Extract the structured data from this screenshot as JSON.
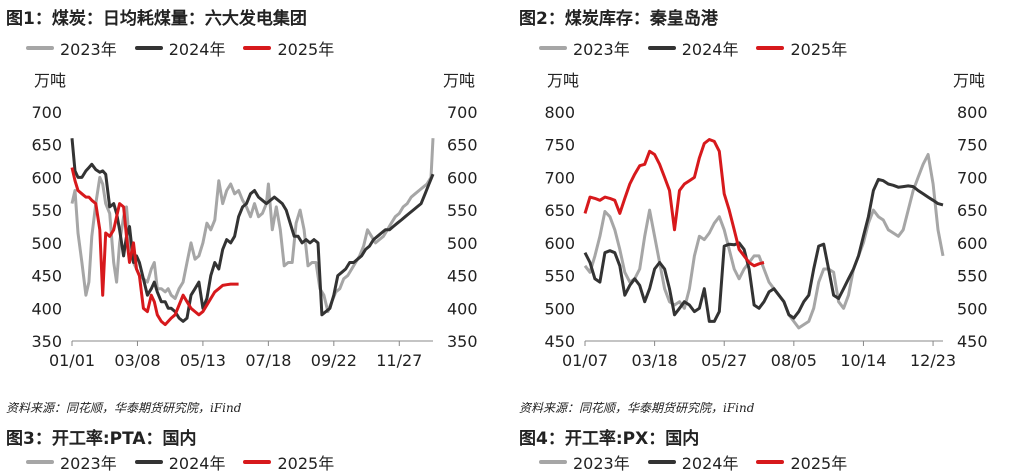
{
  "colors": {
    "y2023": "#a6a6a6",
    "y2024": "#333333",
    "y2025": "#d7191c"
  },
  "panels": [
    {
      "title": "图1：煤炭：日均耗煤量：六大发电集团",
      "source": "资料来源：同花顺，华泰期货研究院，iFind",
      "next_title": "图3：开工率:PTA：国内",
      "chart_data": {
        "type": "line",
        "title": "图1：煤炭：日均耗煤量：六大发电集团",
        "ylabel_left": "万吨",
        "ylabel_right": "万吨",
        "ylim": [
          350,
          700
        ],
        "yticks": [
          350,
          400,
          450,
          500,
          550,
          600,
          650,
          700
        ],
        "xlim": [
          0,
          364
        ],
        "xticks": [
          {
            "pos": 0,
            "label": "01/01"
          },
          {
            "pos": 66,
            "label": "03/08"
          },
          {
            "pos": 132,
            "label": "05/13"
          },
          {
            "pos": 198,
            "label": "07/18"
          },
          {
            "pos": 264,
            "label": "09/22"
          },
          {
            "pos": 330,
            "label": "11/27"
          }
        ],
        "legend": "top-left",
        "grid": false,
        "series": [
          {
            "name": "2023年",
            "color": "#a6a6a6",
            "x": [
              0,
              3,
              6,
              10,
              14,
              17,
              20,
              24,
              28,
              31,
              34,
              38,
              42,
              45,
              48,
              52,
              55,
              58,
              62,
              65,
              68,
              72,
              76,
              80,
              83,
              86,
              90,
              94,
              97,
              100,
              104,
              108,
              112,
              116,
              120,
              124,
              128,
              132,
              136,
              140,
              144,
              148,
              152,
              156,
              160,
              164,
              168,
              172,
              176,
              180,
              184,
              188,
              192,
              196,
              198,
              202,
              206,
              210,
              214,
              218,
              222,
              226,
              230,
              234,
              238,
              242,
              246,
              250,
              254,
              258,
              262,
              266,
              270,
              274,
              278,
              282,
              286,
              290,
              294,
              298,
              302,
              306,
              310,
              314,
              318,
              322,
              326,
              330,
              334,
              338,
              342,
              346,
              350,
              354,
              358,
              362,
              364
            ],
            "values": [
              560,
              580,
              515,
              470,
              420,
              440,
              510,
              560,
              600,
              590,
              560,
              545,
              470,
              440,
              500,
              540,
              555,
              500,
              470,
              460,
              450,
              445,
              440,
              460,
              470,
              430,
              430,
              425,
              430,
              420,
              415,
              430,
              440,
              470,
              500,
              475,
              480,
              500,
              530,
              520,
              535,
              595,
              560,
              580,
              590,
              575,
              580,
              565,
              555,
              540,
              560,
              540,
              545,
              560,
              590,
              520,
              555,
              520,
              465,
              470,
              470,
              530,
              550,
              520,
              465,
              470,
              470,
              430,
              420,
              395,
              410,
              425,
              430,
              445,
              450,
              460,
              470,
              480,
              495,
              520,
              510,
              500,
              505,
              510,
              520,
              530,
              540,
              545,
              555,
              560,
              570,
              575,
              580,
              585,
              590,
              600,
              660
            ]
          },
          {
            "name": "2024年",
            "color": "#333333",
            "x": [
              0,
              3,
              6,
              10,
              14,
              17,
              20,
              24,
              28,
              31,
              34,
              38,
              42,
              45,
              48,
              52,
              55,
              58,
              62,
              65,
              68,
              72,
              76,
              80,
              83,
              86,
              90,
              94,
              97,
              100,
              104,
              108,
              112,
              116,
              120,
              124,
              128,
              132,
              136,
              140,
              144,
              148,
              152,
              156,
              160,
              164,
              168,
              172,
              176,
              180,
              184,
              188,
              192,
              196,
              200,
              204,
              208,
              212,
              216,
              220,
              224,
              228,
              232,
              236,
              240,
              244,
              248,
              252,
              256,
              260,
              264,
              268,
              272,
              276,
              280,
              284,
              288,
              292,
              296,
              300,
              304,
              308,
              312,
              316,
              320,
              324,
              328,
              332,
              336,
              340,
              344,
              348,
              352,
              356,
              360,
              364
            ],
            "values": [
              660,
              610,
              600,
              600,
              610,
              615,
              620,
              612,
              608,
              610,
              605,
              555,
              560,
              545,
              520,
              480,
              510,
              525,
              470,
              480,
              470,
              445,
              420,
              430,
              440,
              425,
              410,
              410,
              400,
              400,
              395,
              385,
              380,
              385,
              420,
              430,
              440,
              400,
              415,
              450,
              470,
              460,
              490,
              505,
              500,
              510,
              540,
              555,
              560,
              575,
              580,
              570,
              565,
              560,
              565,
              570,
              565,
              560,
              550,
              530,
              510,
              510,
              500,
              505,
              500,
              505,
              500,
              390,
              395,
              400,
              420,
              450,
              455,
              460,
              470,
              470,
              475,
              480,
              490,
              495,
              505,
              510,
              515,
              520,
              520,
              525,
              530,
              535,
              540,
              545,
              550,
              555,
              560,
              575,
              590,
              605
            ]
          },
          {
            "name": "2025年",
            "color": "#d7191c",
            "x": [
              0,
              3,
              6,
              10,
              14,
              17,
              20,
              24,
              28,
              31,
              34,
              38,
              42,
              45,
              48,
              52,
              55,
              58,
              62,
              65,
              68,
              72,
              76,
              80,
              83,
              86,
              90,
              94,
              97,
              100,
              104,
              108,
              112,
              116,
              120,
              124,
              128,
              132,
              136,
              140,
              144,
              148,
              152,
              156,
              160,
              164,
              168
            ],
            "values": [
              615,
              595,
              580,
              575,
              570,
              570,
              565,
              560,
              520,
              420,
              515,
              510,
              520,
              540,
              560,
              555,
              510,
              470,
              500,
              460,
              450,
              400,
              395,
              420,
              410,
              390,
              380,
              375,
              380,
              385,
              390,
              405,
              420,
              410,
              400,
              395,
              390,
              395,
              405,
              415,
              425,
              430,
              435,
              436,
              437,
              437,
              437
            ]
          }
        ]
      }
    },
    {
      "title": "图2：煤炭库存：秦皇岛港",
      "source": "资料来源：同花顺，华泰期货研究院，iFind",
      "next_title": "图4：开工率:PX：国内",
      "chart_data": {
        "type": "line",
        "title": "图2：煤炭库存：秦皇岛港",
        "ylabel_left": "万吨",
        "ylabel_right": "万吨",
        "ylim": [
          450,
          800
        ],
        "yticks": [
          450,
          500,
          550,
          600,
          650,
          700,
          750,
          800
        ],
        "xlim": [
          0,
          360
        ],
        "xticks": [
          {
            "pos": 0,
            "label": "01/07"
          },
          {
            "pos": 70,
            "label": "03/18"
          },
          {
            "pos": 140,
            "label": "05/27"
          },
          {
            "pos": 210,
            "label": "08/05"
          },
          {
            "pos": 280,
            "label": "10/14"
          },
          {
            "pos": 350,
            "label": "12/23"
          }
        ],
        "legend": "top-left",
        "grid": false,
        "series": [
          {
            "name": "2023年",
            "color": "#a6a6a6",
            "x": [
              0,
              5,
              10,
              15,
              20,
              25,
              30,
              35,
              40,
              45,
              50,
              55,
              60,
              65,
              70,
              75,
              80,
              85,
              90,
              95,
              100,
              105,
              110,
              115,
              120,
              125,
              130,
              135,
              140,
              145,
              150,
              155,
              160,
              165,
              170,
              175,
              180,
              185,
              190,
              195,
              200,
              205,
              210,
              215,
              220,
              225,
              230,
              235,
              240,
              245,
              250,
              255,
              260,
              265,
              270,
              275,
              280,
              285,
              290,
              295,
              300,
              305,
              310,
              315,
              320,
              325,
              330,
              335,
              340,
              345,
              350,
              355,
              360
            ],
            "values": [
              565,
              555,
              580,
              610,
              648,
              640,
              620,
              590,
              555,
              540,
              545,
              560,
              610,
              650,
              610,
              570,
              530,
              510,
              505,
              510,
              500,
              530,
              580,
              610,
              605,
              615,
              630,
              640,
              620,
              590,
              560,
              545,
              560,
              570,
              580,
              580,
              560,
              540,
              530,
              520,
              510,
              490,
              480,
              470,
              475,
              480,
              500,
              540,
              560,
              560,
              555,
              510,
              500,
              520,
              560,
              580,
              600,
              630,
              650,
              640,
              635,
              620,
              615,
              610,
              620,
              650,
              680,
              700,
              720,
              735,
              690,
              620,
              580
            ]
          },
          {
            "name": "2024年",
            "color": "#333333",
            "x": [
              0,
              5,
              10,
              15,
              20,
              25,
              30,
              35,
              40,
              45,
              50,
              55,
              60,
              65,
              70,
              75,
              80,
              85,
              90,
              95,
              100,
              105,
              110,
              115,
              120,
              125,
              130,
              135,
              140,
              145,
              150,
              155,
              160,
              165,
              170,
              175,
              180,
              185,
              190,
              195,
              200,
              205,
              210,
              215,
              220,
              225,
              230,
              235,
              240,
              245,
              250,
              255,
              260,
              265,
              270,
              275,
              280,
              285,
              290,
              295,
              300,
              305,
              310,
              315,
              320,
              325,
              330,
              335,
              340,
              345,
              350,
              355,
              360
            ],
            "values": [
              585,
              570,
              545,
              540,
              585,
              588,
              585,
              565,
              520,
              535,
              545,
              535,
              510,
              530,
              560,
              570,
              560,
              530,
              490,
              500,
              510,
              505,
              495,
              500,
              530,
              480,
              480,
              495,
              595,
              598,
              597,
              600,
              590,
              560,
              505,
              500,
              510,
              525,
              530,
              520,
              510,
              490,
              485,
              495,
              510,
              520,
              560,
              595,
              598,
              560,
              520,
              515,
              530,
              545,
              560,
              580,
              610,
              640,
              680,
              697,
              695,
              690,
              688,
              685,
              686,
              687,
              686,
              680,
              675,
              670,
              665,
              660,
              658
            ]
          },
          {
            "name": "2025年",
            "color": "#d7191c",
            "x": [
              0,
              5,
              10,
              15,
              20,
              25,
              30,
              35,
              40,
              45,
              50,
              55,
              60,
              65,
              70,
              75,
              80,
              85,
              90,
              95,
              100,
              105,
              110,
              115,
              120,
              125,
              130,
              135,
              140,
              145,
              150,
              155,
              160,
              165,
              170,
              175,
              180
            ],
            "values": [
              645,
              670,
              668,
              665,
              670,
              668,
              665,
              645,
              668,
              690,
              705,
              718,
              720,
              740,
              735,
              720,
              700,
              680,
              620,
              680,
              690,
              695,
              700,
              730,
              752,
              758,
              755,
              740,
              675,
              650,
              620,
              590,
              580,
              570,
              565,
              568,
              570
            ]
          }
        ]
      }
    }
  ]
}
